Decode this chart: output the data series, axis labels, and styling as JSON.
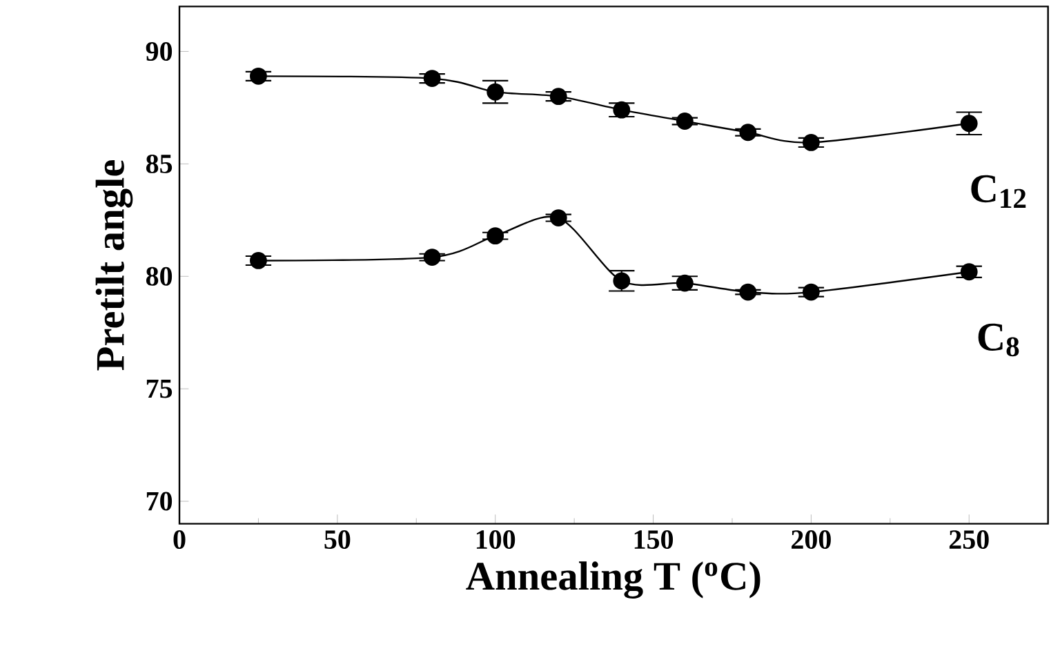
{
  "chart_data": {
    "type": "line",
    "xlabel": "Annealing T ($^{o}$C)",
    "ylabel": "Pretilt angle",
    "x": [
      25,
      80,
      100,
      120,
      140,
      160,
      180,
      200,
      250
    ],
    "series": [
      {
        "name": "C$_{12}$",
        "color": "#000000",
        "values": [
          88.9,
          88.8,
          88.2,
          88.0,
          87.4,
          86.9,
          86.4,
          85.95,
          86.8
        ],
        "errors": [
          0.2,
          0.2,
          0.5,
          0.2,
          0.3,
          0.15,
          0.15,
          0.2,
          0.5
        ]
      },
      {
        "name": "C$_{8}$",
        "color": "#000000",
        "values": [
          80.7,
          80.85,
          81.8,
          82.6,
          79.8,
          79.7,
          79.3,
          79.3,
          80.2
        ],
        "errors": [
          0.2,
          0.15,
          0.15,
          0.15,
          0.45,
          0.3,
          0.1,
          0.2,
          0.25
        ]
      }
    ],
    "xlim": [
      0,
      275
    ],
    "ylim": [
      69,
      92
    ],
    "xticks": [
      0,
      50,
      100,
      150,
      200,
      250
    ],
    "yticks": [
      70,
      75,
      80,
      85,
      90
    ],
    "marker": "circle",
    "line_style": "solid"
  }
}
